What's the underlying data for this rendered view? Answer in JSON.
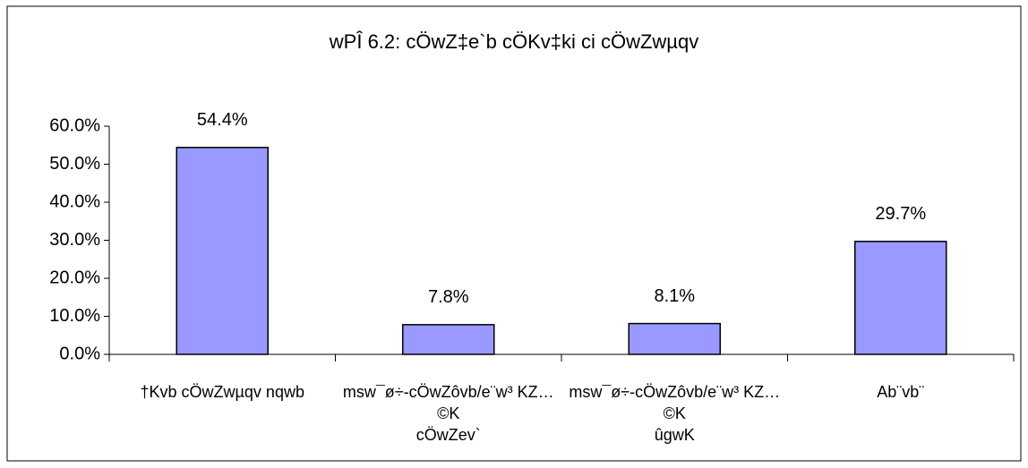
{
  "chart_data": {
    "type": "bar",
    "title": "wPÎ 6.2: cÖwZ‡e`b cÖKv‡ki ci cÖwZwµqv",
    "categories": [
      "†Kvb cÖwZwµqv nqwb",
      "msw¯ø÷-cÖwZôvb/e¨w³ KZ…©K\ncÖwZev`",
      "msw¯ø÷-cÖwZôvb/e¨w³ KZ…©K\nûgwK",
      "Ab¨vb¨"
    ],
    "values": [
      54.4,
      7.8,
      8.1,
      29.7
    ],
    "value_labels": [
      "54.4%",
      "7.8%",
      "8.1%",
      "29.7%"
    ],
    "color": "#9999ff",
    "ylim": [
      0,
      60
    ],
    "yticks": [
      {
        "value": 0,
        "label": "0.0%"
      },
      {
        "value": 10,
        "label": "10.0%"
      },
      {
        "value": 20,
        "label": "20.0%"
      },
      {
        "value": 30,
        "label": "30.0%"
      },
      {
        "value": 40,
        "label": "40.0%"
      },
      {
        "value": 50,
        "label": "50.0%"
      },
      {
        "value": 60,
        "label": "60.0%"
      }
    ],
    "grid": false
  }
}
